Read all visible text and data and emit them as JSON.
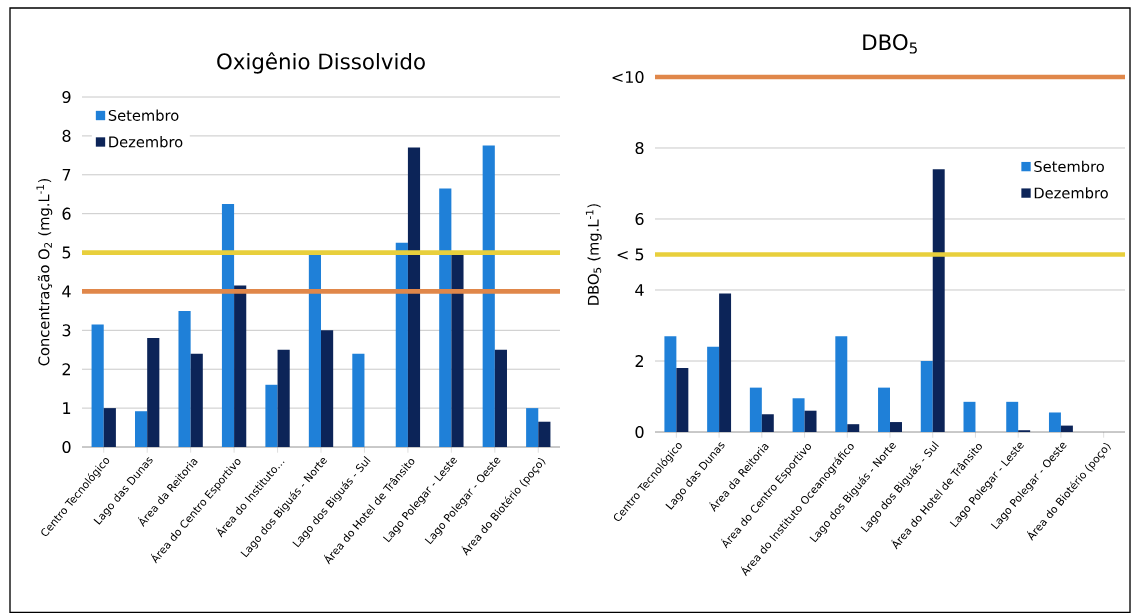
{
  "chart_data": [
    {
      "type": "bar",
      "title": "Oxigênio Dissolvido",
      "ylabel": "Concentração O$_{2}$ (mg.L$^{-1}$)",
      "categories": [
        "Centro Tecnológico",
        "Lago das Dunas",
        "Área da Reitoria",
        "Área do Centro Esportivo",
        "Área do Instituto…",
        "Lago dos Biguás - Norte",
        "Lago dos Biguás - Sul",
        "Área do Hotel de Trânsito",
        "Lago Polegar - Leste",
        "Lago Polegar - Oeste",
        "Área do Biotério (poço)"
      ],
      "series": [
        {
          "name": "Setembro",
          "color": "#1f80d8",
          "values": [
            3.15,
            0.92,
            3.5,
            6.25,
            1.6,
            4.95,
            2.4,
            5.25,
            6.65,
            7.75,
            1.0
          ]
        },
        {
          "name": "Dezembro",
          "color": "#0c2458",
          "values": [
            1.0,
            2.8,
            2.4,
            4.15,
            2.5,
            3.0,
            null,
            7.7,
            4.95,
            2.5,
            0.65
          ]
        }
      ],
      "ylim": [
        0,
        9
      ],
      "yticks": [
        0,
        1,
        2,
        3,
        4,
        5,
        6,
        7,
        8,
        9
      ],
      "grid": "y",
      "legend": "top left",
      "ref_lines": [
        {
          "axis": "y",
          "value": 5,
          "color": "#e8cf3c"
        },
        {
          "axis": "y",
          "value": 4,
          "color": "#e0874a"
        }
      ]
    },
    {
      "type": "bar",
      "title": "DBO$_{5}$",
      "ylabel": "DBO$_{5}$ (mg.L$^{-1}$)",
      "categories": [
        "Centro Tecnológico",
        "Lago das Dunas",
        "Área da Reitoria",
        "Área do Centro Esportivo",
        "Área do Instituto Oceanográfico",
        "Lago dos Biguás - Norte",
        "Lago dos Biguás - Sul",
        "Área do Hotel de Trânsito",
        "Lago Polegar - Leste",
        "Lago Polegar - Oeste",
        "Área do Biotério (poço)"
      ],
      "series": [
        {
          "name": "Setembro",
          "color": "#1f80d8",
          "values": [
            2.7,
            2.4,
            1.25,
            0.95,
            2.7,
            1.25,
            2.0,
            0.85,
            0.85,
            0.55,
            null
          ]
        },
        {
          "name": "Dezembro",
          "color": "#0c2458",
          "values": [
            1.8,
            3.9,
            0.5,
            0.6,
            0.22,
            0.28,
            7.4,
            null,
            0.05,
            0.18,
            null
          ]
        }
      ],
      "ylim": [
        0,
        10
      ],
      "yticks": [
        0,
        2,
        4,
        {
          "value": 5,
          "label": "< 5"
        },
        6,
        8,
        {
          "value": 10,
          "label": "<10"
        }
      ],
      "grid": "y",
      "legend": "right",
      "ref_lines": [
        {
          "axis": "y",
          "value": 10,
          "color": "#e0874a"
        },
        {
          "axis": "y",
          "value": 5,
          "color": "#e8cf3c"
        }
      ]
    }
  ]
}
